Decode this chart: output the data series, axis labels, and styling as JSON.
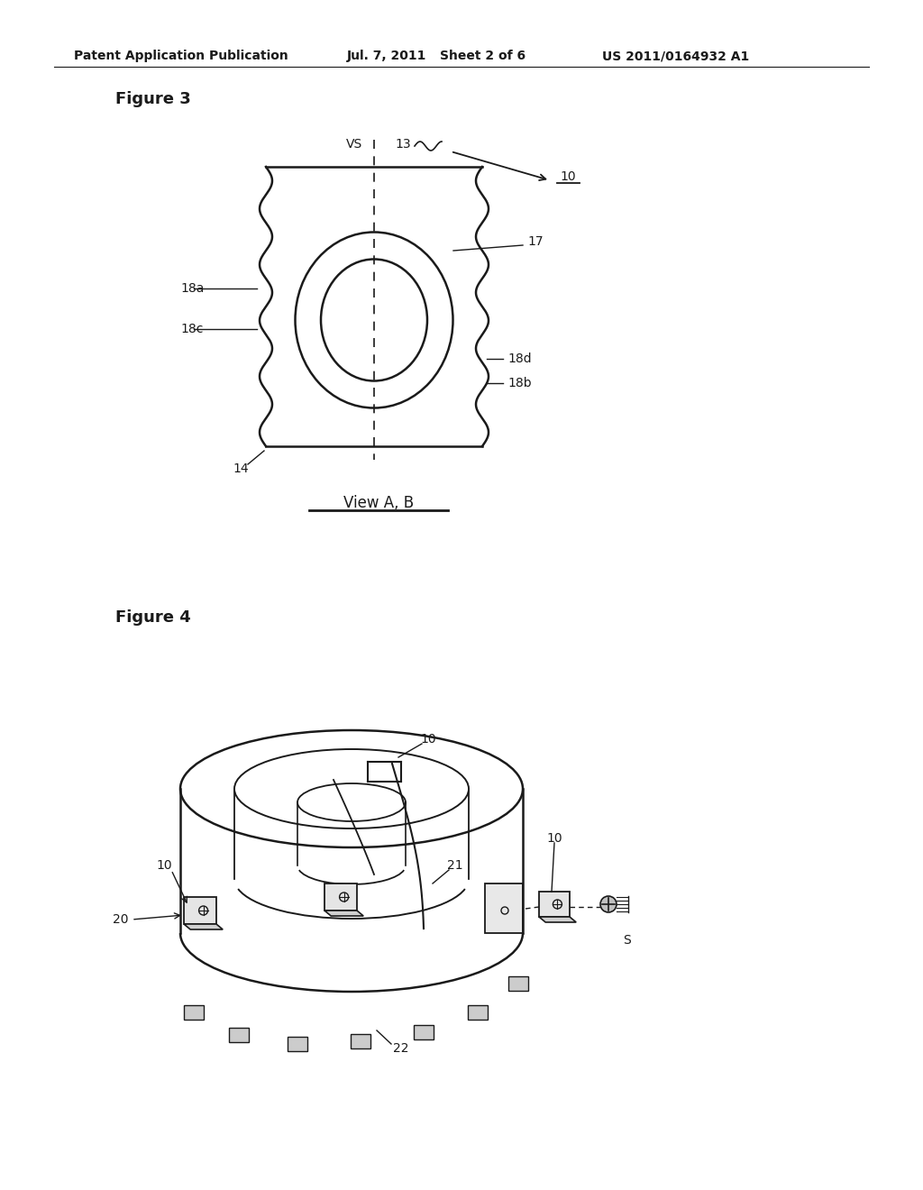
{
  "page_bg": "#ffffff",
  "header_text": "Patent Application Publication",
  "header_date": "Jul. 7, 2011",
  "header_sheet": "Sheet 2 of 6",
  "header_patent": "US 2011/0164932 A1",
  "line_color": "#1a1a1a",
  "text_color": "#1a1a1a",
  "annotation_fontsize": 10,
  "fig3_label": "Figure 3",
  "fig4_label": "Figure 4",
  "view_label": "View A, B"
}
